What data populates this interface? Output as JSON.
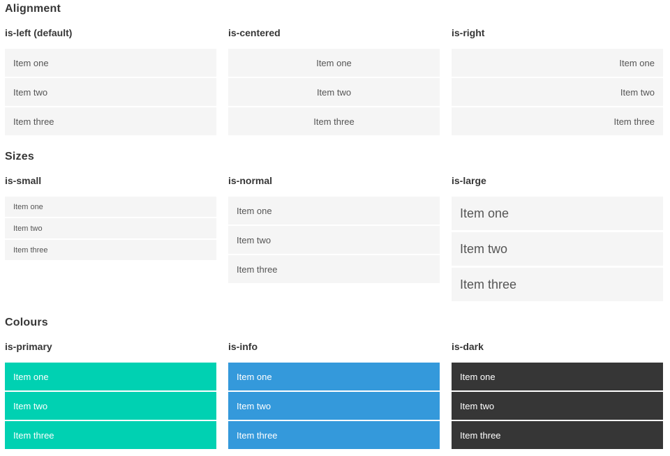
{
  "colors": {
    "primary": "#00d1b2",
    "info": "#3499db",
    "dark": "#363636",
    "item_background": "#f5f5f5",
    "item_text": "#555555",
    "item_text_inverted": "#ffffff",
    "heading_text": "#363636"
  },
  "sections": [
    {
      "title": "Alignment",
      "groups": [
        {
          "heading": "is-left (default)",
          "items": [
            "Item one",
            "Item two",
            "Item three"
          ]
        },
        {
          "heading": "is-centered",
          "items": [
            "Item one",
            "Item two",
            "Item three"
          ]
        },
        {
          "heading": "is-right",
          "items": [
            "Item one",
            "Item two",
            "Item three"
          ]
        }
      ]
    },
    {
      "title": "Sizes",
      "groups": [
        {
          "heading": "is-small",
          "items": [
            "Item one",
            "Item two",
            "Item three"
          ]
        },
        {
          "heading": "is-normal",
          "items": [
            "Item one",
            "Item two",
            "Item three"
          ]
        },
        {
          "heading": "is-large",
          "items": [
            "Item one",
            "Item two",
            "Item three"
          ]
        }
      ]
    },
    {
      "title": "Colours",
      "groups": [
        {
          "heading": "is-primary",
          "items": [
            "Item one",
            "Item two",
            "Item three"
          ]
        },
        {
          "heading": "is-info",
          "items": [
            "Item one",
            "Item two",
            "Item three"
          ]
        },
        {
          "heading": "is-dark",
          "items": [
            "Item one",
            "Item two",
            "Item three"
          ]
        }
      ]
    }
  ]
}
